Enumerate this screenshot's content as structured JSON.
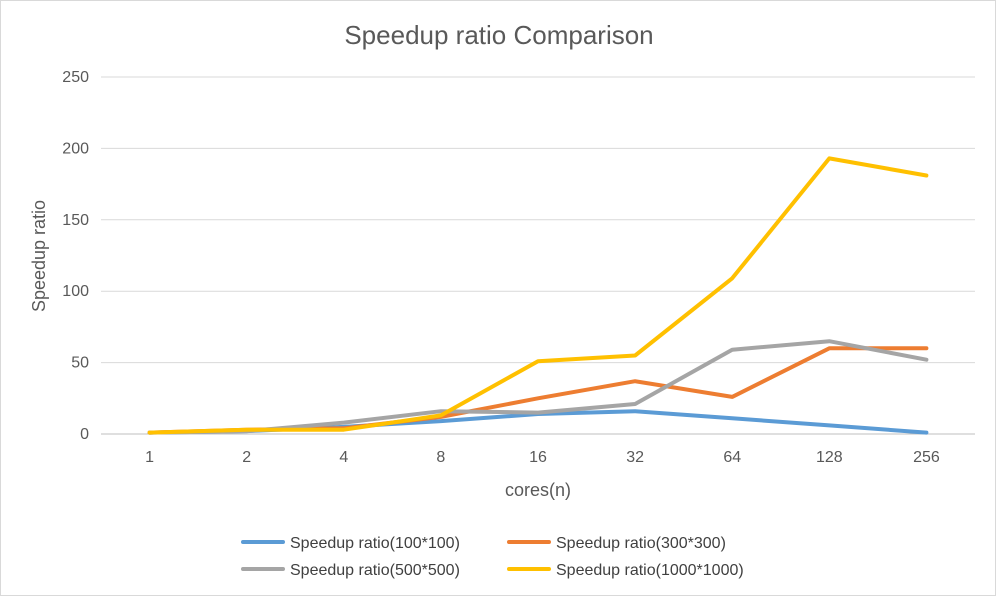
{
  "chart_data": {
    "type": "line",
    "title": "Speedup ratio Comparison",
    "xlabel": "cores(n)",
    "ylabel": "Speedup ratio",
    "categories": [
      "1",
      "2",
      "4",
      "8",
      "16",
      "32",
      "64",
      "128",
      "256"
    ],
    "ylim": [
      0,
      250
    ],
    "yticks": [
      0,
      50,
      100,
      150,
      200,
      250
    ],
    "grid": true,
    "legend_position": "bottom",
    "series": [
      {
        "name": "Speedup ratio(100*100)",
        "color": "#5b9bd5",
        "values": [
          1,
          2,
          5,
          9,
          14,
          16,
          11,
          6,
          1
        ]
      },
      {
        "name": "Speedup ratio(300*300)",
        "color": "#ed7d31",
        "values": [
          1,
          3,
          4,
          12,
          25,
          37,
          26,
          60,
          60
        ]
      },
      {
        "name": "Speedup ratio(500*500)",
        "color": "#a5a5a5",
        "values": [
          1,
          2,
          8,
          16,
          15,
          21,
          59,
          65,
          52
        ]
      },
      {
        "name": "Speedup ratio(1000*1000)",
        "color": "#ffc000",
        "values": [
          1,
          3,
          3,
          13,
          51,
          55,
          109,
          193,
          181
        ]
      }
    ]
  }
}
